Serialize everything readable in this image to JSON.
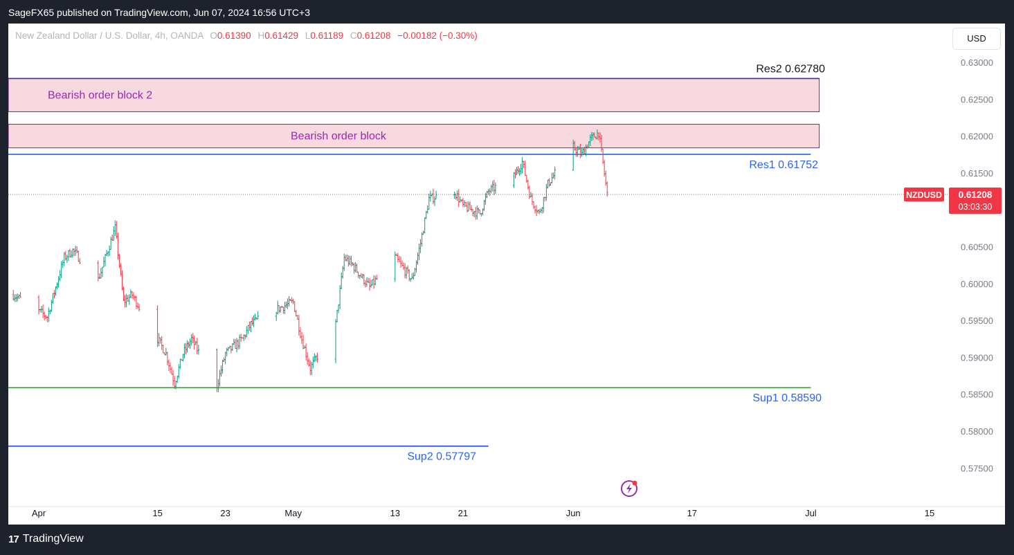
{
  "header": {
    "published_text": "SageFX65 published on TradingView.com, Jun 07, 2024 16:56 UTC+3"
  },
  "legend": {
    "instrument": "New Zealand Dollar / U.S. Dollar, 4h, OANDA",
    "o_label": "O",
    "o_value": "0.61390",
    "h_label": "H",
    "h_value": "0.61429",
    "l_label": "L",
    "l_value": "0.61189",
    "c_label": "C",
    "c_value": "0.61208",
    "change": "−0.00182 (−0.30%)"
  },
  "currency_button": "USD",
  "footer": {
    "brand": "TradingView",
    "logo_glyph": "17"
  },
  "colors": {
    "up": "#089981",
    "down": "#f23645",
    "zone_fill": "#f9d9e0",
    "zone_border": "#7b1fa2",
    "res_line": "#2962ff",
    "sup_line": "#43a047",
    "sup2_line": "#1e40e0"
  },
  "chart_data": {
    "type": "candlestick",
    "symbol": "NZDUSD",
    "timeframe": "4h",
    "ylim": [
      0.5725,
      0.6315
    ],
    "y_ticks": [
      0.575,
      0.58,
      0.585,
      0.59,
      0.595,
      0.6,
      0.605,
      0.615,
      0.62,
      0.625,
      0.63
    ],
    "y_tick_labels": [
      "0.57500",
      "0.58000",
      "0.58500",
      "0.59000",
      "0.59500",
      "0.60000",
      "0.60500",
      "0.61500",
      "0.62000",
      "0.62500",
      "0.63000"
    ],
    "x_ticks": [
      {
        "label": "Apr",
        "date": "2024-04-01"
      },
      {
        "label": "15",
        "date": "2024-04-15"
      },
      {
        "label": "23",
        "date": "2024-04-23"
      },
      {
        "label": "May",
        "date": "2024-05-01"
      },
      {
        "label": "13",
        "date": "2024-05-13"
      },
      {
        "label": "21",
        "date": "2024-05-21"
      },
      {
        "label": "Jun",
        "date": "2024-06-03"
      },
      {
        "label": "17",
        "date": "2024-06-17"
      },
      {
        "label": "Jul",
        "date": "2024-07-01"
      },
      {
        "label": "15",
        "date": "2024-07-15"
      }
    ],
    "price_path": [
      {
        "date": "2024-03-29",
        "price": 0.5985
      },
      {
        "date": "2024-04-02",
        "price": 0.5955
      },
      {
        "date": "2024-04-04",
        "price": 0.6035
      },
      {
        "date": "2024-04-05",
        "price": 0.6045
      },
      {
        "date": "2024-04-08",
        "price": 0.6005
      },
      {
        "date": "2024-04-10",
        "price": 0.6075
      },
      {
        "date": "2024-04-11",
        "price": 0.5975
      },
      {
        "date": "2024-04-12",
        "price": 0.5985
      },
      {
        "date": "2024-04-16",
        "price": 0.5905
      },
      {
        "date": "2024-04-17",
        "price": 0.5865
      },
      {
        "date": "2024-04-18",
        "price": 0.5905
      },
      {
        "date": "2024-04-19",
        "price": 0.5925
      },
      {
        "date": "2024-04-22",
        "price": 0.5862
      },
      {
        "date": "2024-04-23",
        "price": 0.5905
      },
      {
        "date": "2024-04-25",
        "price": 0.5925
      },
      {
        "date": "2024-04-26",
        "price": 0.5945
      },
      {
        "date": "2024-04-29",
        "price": 0.5965
      },
      {
        "date": "2024-05-01",
        "price": 0.5975
      },
      {
        "date": "2024-05-02",
        "price": 0.5925
      },
      {
        "date": "2024-05-03",
        "price": 0.5885
      },
      {
        "date": "2024-05-06",
        "price": 0.5945
      },
      {
        "date": "2024-05-07",
        "price": 0.6035
      },
      {
        "date": "2024-05-08",
        "price": 0.6025
      },
      {
        "date": "2024-05-10",
        "price": 0.5995
      },
      {
        "date": "2024-05-13",
        "price": 0.6035
      },
      {
        "date": "2024-05-15",
        "price": 0.6005
      },
      {
        "date": "2024-05-16",
        "price": 0.6055
      },
      {
        "date": "2024-05-17",
        "price": 0.6115
      },
      {
        "date": "2024-05-20",
        "price": 0.6125
      },
      {
        "date": "2024-05-21",
        "price": 0.6105
      },
      {
        "date": "2024-05-23",
        "price": 0.6095
      },
      {
        "date": "2024-05-24",
        "price": 0.6125
      },
      {
        "date": "2024-05-27",
        "price": 0.6145
      },
      {
        "date": "2024-05-28",
        "price": 0.6165
      },
      {
        "date": "2024-05-29",
        "price": 0.6115
      },
      {
        "date": "2024-05-30",
        "price": 0.6095
      },
      {
        "date": "2024-05-31",
        "price": 0.6135
      },
      {
        "date": "2024-06-03",
        "price": 0.6185
      },
      {
        "date": "2024-06-04",
        "price": 0.6175
      },
      {
        "date": "2024-06-05",
        "price": 0.6195
      },
      {
        "date": "2024-06-06",
        "price": 0.6205
      },
      {
        "date": "2024-06-07",
        "price": 0.6121
      }
    ],
    "zones": [
      {
        "label": "Bearish order block 2",
        "top": 0.6278,
        "bottom": 0.6233,
        "start": "2024-03-29",
        "end": "2024-07-02"
      },
      {
        "label": "Bearish order block",
        "top": 0.6216,
        "bottom": 0.6184,
        "start": "2024-03-29",
        "end": "2024-07-02"
      }
    ],
    "levels": [
      {
        "label": "Res2 0.62780",
        "price": 0.6278,
        "end": "2024-07-02",
        "color": "#3f2a9e"
      },
      {
        "label": "Res1 0.61752",
        "price": 0.61752,
        "end": "2024-07-01",
        "color": "#2962ff"
      },
      {
        "label": "Sup1 0.58590",
        "price": 0.5859,
        "end": "2024-07-01",
        "color": "#43a047"
      },
      {
        "label": "Sup2  0.57797",
        "price": 0.57797,
        "end": "2024-05-24",
        "color": "#1e40e0"
      }
    ],
    "last_price": {
      "symbol": "NZDUSD",
      "price": "0.61208",
      "countdown": "03:03:30",
      "value": 0.61208
    }
  }
}
